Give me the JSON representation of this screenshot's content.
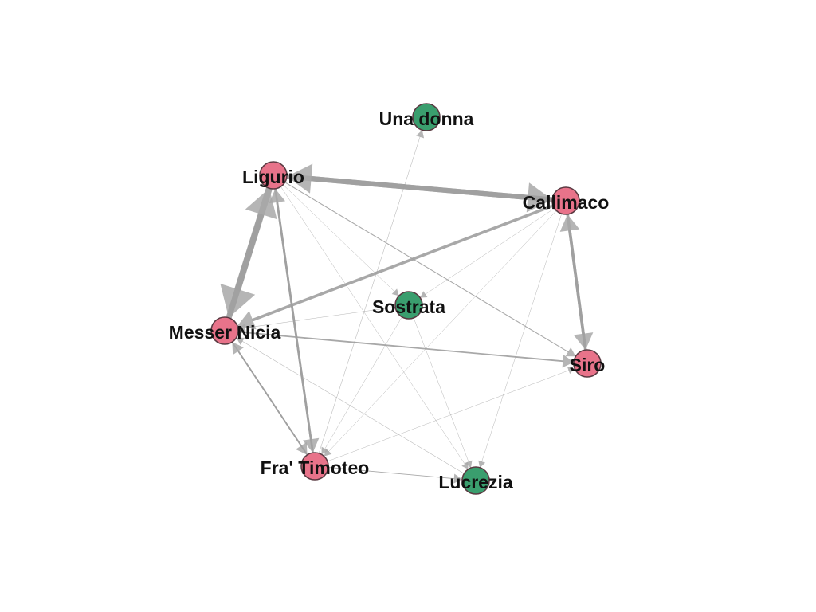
{
  "graph": {
    "node_colors": {
      "male": "#e8738a",
      "female": "#3a9e6e"
    },
    "edge_color": "#9e9e9e",
    "nodes": [
      {
        "id": "una",
        "label": "Una donna",
        "group": "female"
      },
      {
        "id": "ligurio",
        "label": "Ligurio",
        "group": "male"
      },
      {
        "id": "callimaco",
        "label": "Callimaco",
        "group": "male"
      },
      {
        "id": "sostrata",
        "label": "Sostrata",
        "group": "female"
      },
      {
        "id": "nicia",
        "label": "Messer Nicia",
        "group": "male"
      },
      {
        "id": "siro",
        "label": "Siro",
        "group": "male"
      },
      {
        "id": "timoteo",
        "label": "Fra' Timoteo",
        "group": "male"
      },
      {
        "id": "lucrezia",
        "label": "Lucrezia",
        "group": "female"
      }
    ],
    "edges": [
      {
        "source": "ligurio",
        "target": "callimaco",
        "weight": 7
      },
      {
        "source": "callimaco",
        "target": "ligurio",
        "weight": 7
      },
      {
        "source": "ligurio",
        "target": "nicia",
        "weight": 9
      },
      {
        "source": "nicia",
        "target": "ligurio",
        "weight": 8
      },
      {
        "source": "callimaco",
        "target": "nicia",
        "weight": 4
      },
      {
        "source": "callimaco",
        "target": "siro",
        "weight": 4
      },
      {
        "source": "siro",
        "target": "callimaco",
        "weight": 4
      },
      {
        "source": "ligurio",
        "target": "timoteo",
        "weight": 3
      },
      {
        "source": "timoteo",
        "target": "ligurio",
        "weight": 3
      },
      {
        "source": "nicia",
        "target": "siro",
        "weight": 2
      },
      {
        "source": "nicia",
        "target": "timoteo",
        "weight": 2
      },
      {
        "source": "timoteo",
        "target": "nicia",
        "weight": 2
      },
      {
        "source": "ligurio",
        "target": "siro",
        "weight": 1.2
      },
      {
        "source": "timoteo",
        "target": "una",
        "weight": 0.6
      },
      {
        "source": "timoteo",
        "target": "lucrezia",
        "weight": 1
      },
      {
        "source": "sostrata",
        "target": "nicia",
        "weight": 0.6
      },
      {
        "source": "sostrata",
        "target": "timoteo",
        "weight": 0.4
      },
      {
        "source": "sostrata",
        "target": "lucrezia",
        "weight": 0.4
      },
      {
        "source": "lucrezia",
        "target": "nicia",
        "weight": 0.6
      },
      {
        "source": "ligurio",
        "target": "lucrezia",
        "weight": 0.3
      },
      {
        "source": "ligurio",
        "target": "sostrata",
        "weight": 0.3
      },
      {
        "source": "callimaco",
        "target": "timoteo",
        "weight": 0.5
      },
      {
        "source": "callimaco",
        "target": "sostrata",
        "weight": 0.3
      },
      {
        "source": "callimaco",
        "target": "lucrezia",
        "weight": 0.3
      },
      {
        "source": "timoteo",
        "target": "siro",
        "weight": 0.3
      }
    ]
  }
}
